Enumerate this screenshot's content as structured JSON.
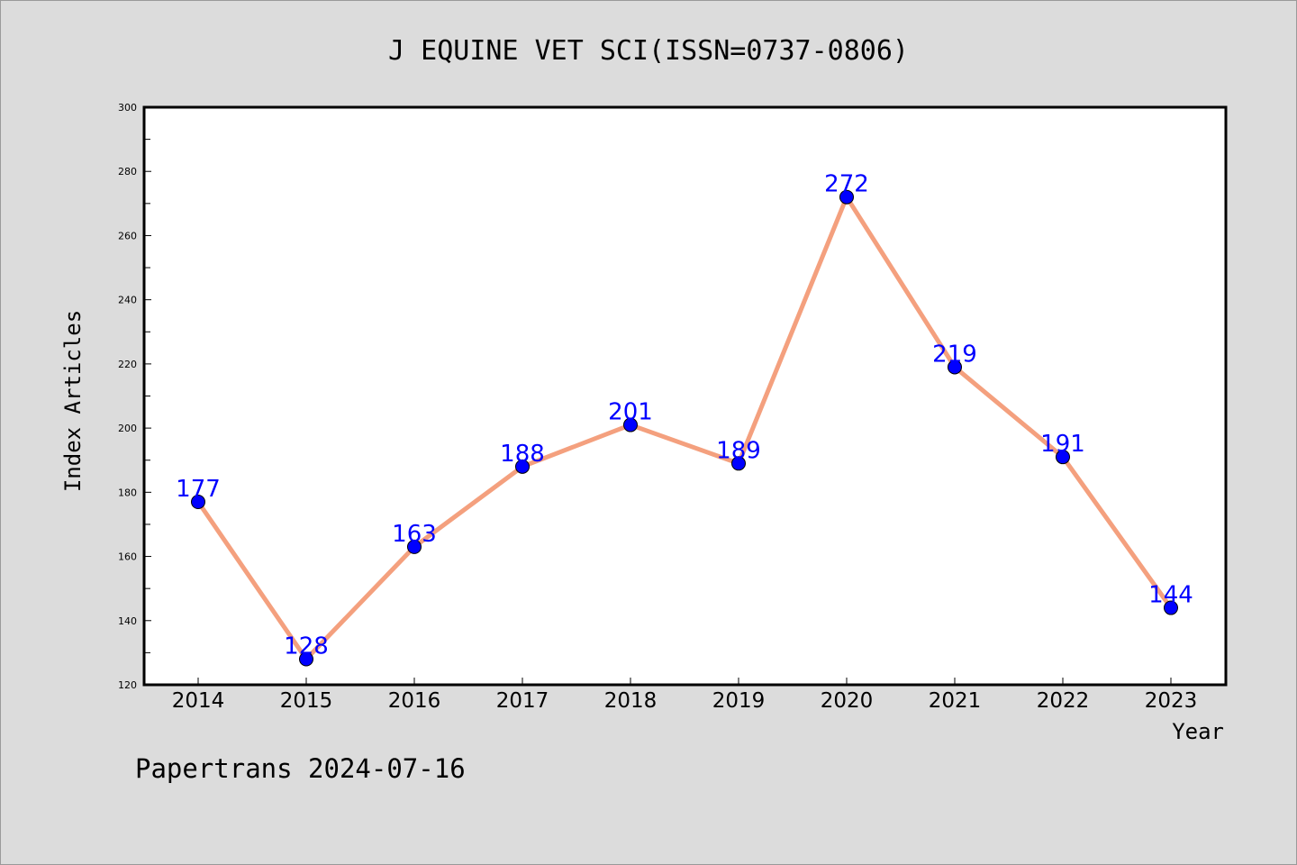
{
  "chart_data": {
    "type": "line",
    "title": "J EQUINE VET SCI(ISSN=0737-0806)",
    "xlabel": "Year",
    "ylabel": "Index Articles",
    "categories": [
      "2014",
      "2015",
      "2016",
      "2017",
      "2018",
      "2019",
      "2020",
      "2021",
      "2022",
      "2023"
    ],
    "series": [
      {
        "values": [
          177,
          128,
          163,
          188,
          201,
          189,
          272,
          219,
          191,
          144
        ]
      }
    ],
    "ylim": [
      120,
      300
    ],
    "yticks": [
      120,
      140,
      160,
      180,
      200,
      220,
      240,
      260,
      280,
      300
    ],
    "grid": false,
    "data_labels": true,
    "colors": {
      "line": "#f4a07e",
      "marker": "#0000ff",
      "label": "#0000ff",
      "background": "#dcdcdc",
      "plot_area": "#ffffff"
    }
  },
  "footer": {
    "text": "Papertrans 2024-07-16"
  }
}
